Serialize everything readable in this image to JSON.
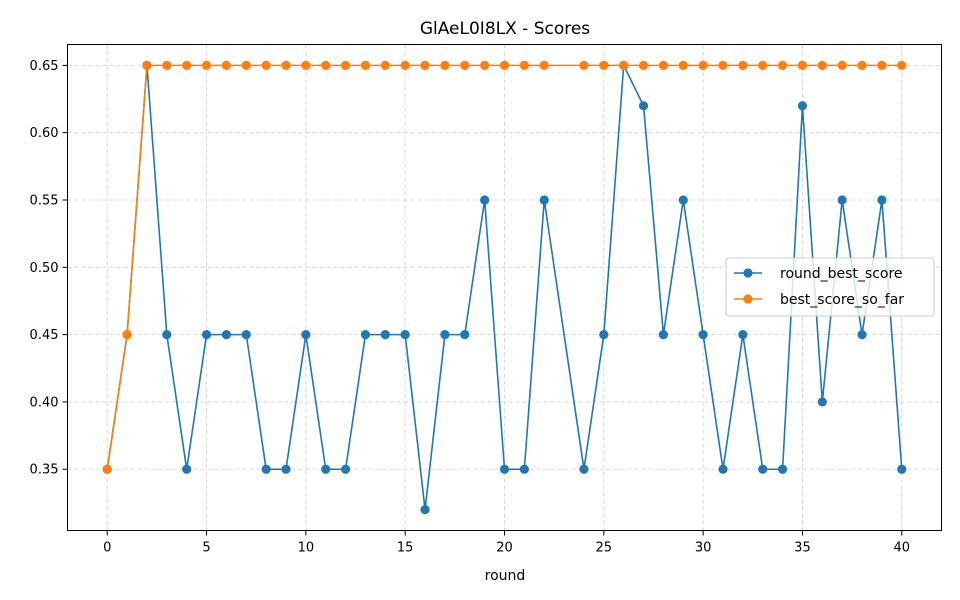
{
  "chart_data": {
    "type": "line",
    "title": "GlAeL0I8LX - Scores",
    "xlabel": "round",
    "ylabel": "",
    "xlim": [
      -2,
      42
    ],
    "ylim": [
      0.3045,
      0.6655
    ],
    "xticks": [
      0,
      5,
      10,
      15,
      20,
      25,
      30,
      35,
      40
    ],
    "yticks": [
      0.35,
      0.4,
      0.45,
      0.5,
      0.55,
      0.6,
      0.65
    ],
    "ytick_labels": [
      "0.35",
      "0.40",
      "0.45",
      "0.50",
      "0.55",
      "0.60",
      "0.65"
    ],
    "grid": true,
    "legend_position": "center-right",
    "series": [
      {
        "name": "round_best_score",
        "color": "#1f77b4",
        "x": [
          0,
          1,
          2,
          3,
          4,
          5,
          6,
          7,
          8,
          9,
          10,
          11,
          12,
          13,
          14,
          15,
          16,
          17,
          18,
          19,
          20,
          21,
          22,
          24,
          25,
          26,
          27,
          28,
          29,
          30,
          31,
          32,
          33,
          34,
          35,
          36,
          37,
          38,
          39,
          40
        ],
        "y": [
          0.35,
          0.45,
          0.65,
          0.45,
          0.35,
          0.45,
          0.45,
          0.45,
          0.35,
          0.35,
          0.45,
          0.35,
          0.35,
          0.45,
          0.45,
          0.45,
          0.32,
          0.45,
          0.45,
          0.55,
          0.35,
          0.35,
          0.55,
          0.35,
          0.45,
          0.65,
          0.62,
          0.45,
          0.55,
          0.45,
          0.35,
          0.45,
          0.35,
          0.35,
          0.62,
          0.4,
          0.55,
          0.45,
          0.55,
          0.35
        ]
      },
      {
        "name": "best_score_so_far",
        "color": "#ff7f0e",
        "x": [
          0,
          1,
          2,
          3,
          4,
          5,
          6,
          7,
          8,
          9,
          10,
          11,
          12,
          13,
          14,
          15,
          16,
          17,
          18,
          19,
          20,
          21,
          22,
          24,
          25,
          26,
          27,
          28,
          29,
          30,
          31,
          32,
          33,
          34,
          35,
          36,
          37,
          38,
          39,
          40
        ],
        "y": [
          0.35,
          0.45,
          0.65,
          0.65,
          0.65,
          0.65,
          0.65,
          0.65,
          0.65,
          0.65,
          0.65,
          0.65,
          0.65,
          0.65,
          0.65,
          0.65,
          0.65,
          0.65,
          0.65,
          0.65,
          0.65,
          0.65,
          0.65,
          0.65,
          0.65,
          0.65,
          0.65,
          0.65,
          0.65,
          0.65,
          0.65,
          0.65,
          0.65,
          0.65,
          0.65,
          0.65,
          0.65,
          0.65,
          0.65,
          0.65
        ]
      }
    ]
  }
}
